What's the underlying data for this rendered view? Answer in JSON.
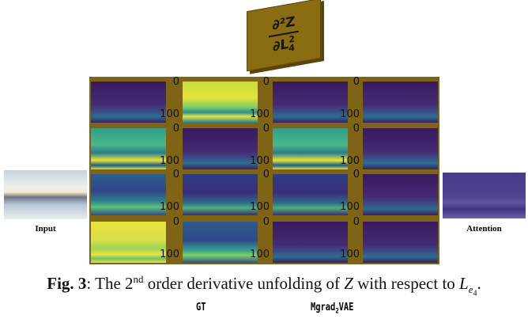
{
  "operator_box": {
    "numerator": "∂²Z",
    "denominator_base": "∂L",
    "denominator_sup": "2",
    "denominator_sub": "4"
  },
  "panel_ticks": [
    "0",
    "100"
  ],
  "side_labels": {
    "input": "Input",
    "attention": "Attention"
  },
  "caption": {
    "label": "Fig. 3",
    "before": ": The 2",
    "sup": "nd",
    "middle": " order derivative unfolding of ",
    "var": "Z",
    "after": " with respect to ",
    "var2": "L",
    "sub": "e",
    "subsub": "4",
    "end": "."
  },
  "bottom_labels": {
    "gt": "GT",
    "model_base": "Mgrad",
    "model_sub": "2",
    "model_end": "VAE"
  }
}
